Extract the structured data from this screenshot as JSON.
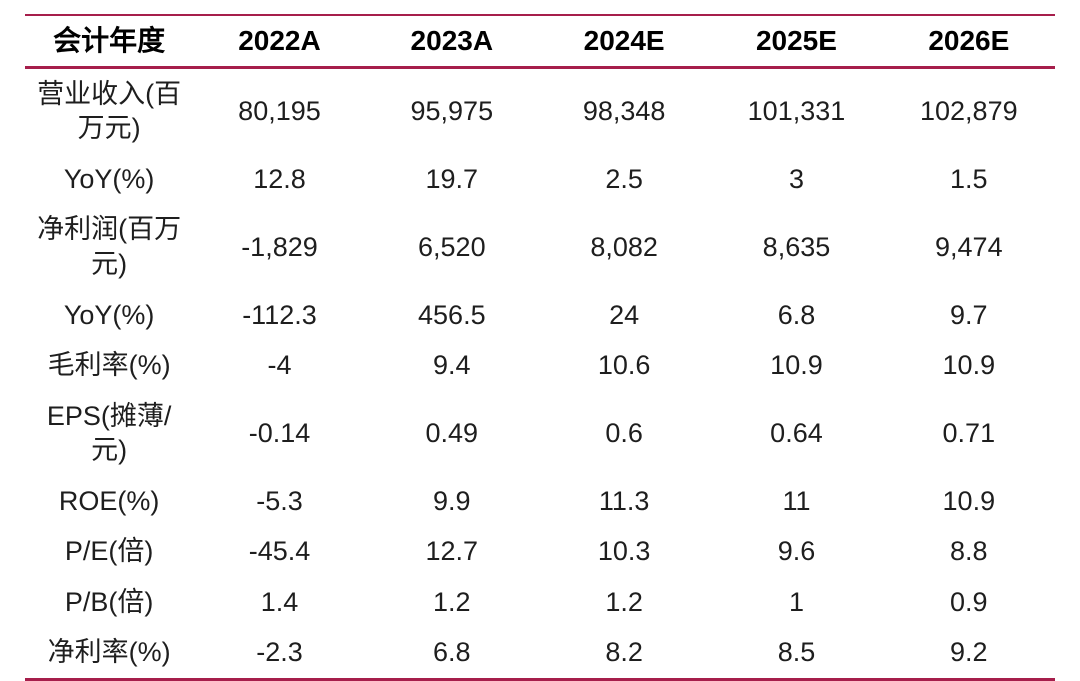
{
  "accent_color": "#a61e4b",
  "table": {
    "header": {
      "label": "会计年度",
      "columns": [
        "2022A",
        "2023A",
        "2024E",
        "2025E",
        "2026E"
      ]
    },
    "rows": [
      {
        "label": "营业收入(百万元)",
        "values": [
          "80,195",
          "95,975",
          "98,348",
          "101,331",
          "102,879"
        ]
      },
      {
        "label": "YoY(%)",
        "values": [
          "12.8",
          "19.7",
          "2.5",
          "3",
          "1.5"
        ]
      },
      {
        "label": "净利润(百万元)",
        "values": [
          "-1,829",
          "6,520",
          "8,082",
          "8,635",
          "9,474"
        ]
      },
      {
        "label": "YoY(%)",
        "values": [
          "-112.3",
          "456.5",
          "24",
          "6.8",
          "9.7"
        ]
      },
      {
        "label": "毛利率(%)",
        "values": [
          "-4",
          "9.4",
          "10.6",
          "10.9",
          "10.9"
        ]
      },
      {
        "label": "EPS(摊薄/元)",
        "values": [
          "-0.14",
          "0.49",
          "0.6",
          "0.64",
          "0.71"
        ]
      },
      {
        "label": "ROE(%)",
        "values": [
          "-5.3",
          "9.9",
          "11.3",
          "11",
          "10.9"
        ]
      },
      {
        "label": "P/E(倍)",
        "values": [
          "-45.4",
          "12.7",
          "10.3",
          "9.6",
          "8.8"
        ]
      },
      {
        "label": "P/B(倍)",
        "values": [
          "1.4",
          "1.2",
          "1.2",
          "1",
          "0.9"
        ]
      },
      {
        "label": "净利率(%)",
        "values": [
          "-2.3",
          "6.8",
          "8.2",
          "8.5",
          "9.2"
        ]
      }
    ]
  }
}
